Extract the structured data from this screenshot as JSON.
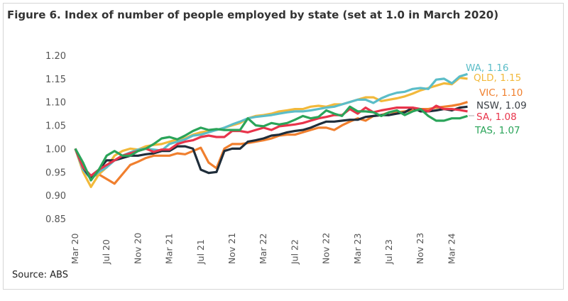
{
  "chart_data": {
    "type": "line",
    "title": "Figure 6. Index of number of people employed by state (set at 1.0 in March 2020)",
    "source": "Source: ABS",
    "xlabel": "",
    "ylabel": "",
    "ylim": [
      0.85,
      1.2
    ],
    "yticks": [
      "1.20",
      "1.15",
      "1.10",
      "1.05",
      "1.00",
      "0.95",
      "0.90",
      "0.85"
    ],
    "xticks": [
      "Mar 20",
      "Jul 20",
      "Nov 20",
      "Mar 21",
      "Jul 21",
      "Nov 21",
      "Mar 22",
      "Jul 22",
      "Nov 22",
      "Mar 23",
      "Jul 23",
      "Nov 23",
      "Mar 24"
    ],
    "x_range": [
      "Mar 2020",
      "May 2024"
    ],
    "frequency": "monthly",
    "grid": false,
    "legend": "end-of-line labels (right)",
    "series": [
      {
        "name": "WA",
        "label": "WA, 1.16",
        "color": "#5bbdc8",
        "values": [
          1.0,
          0.955,
          0.935,
          0.95,
          0.96,
          0.975,
          0.985,
          0.992,
          0.998,
          1.0,
          0.998,
          0.996,
          1.01,
          1.015,
          1.02,
          1.028,
          1.03,
          1.035,
          1.04,
          1.045,
          1.052,
          1.058,
          1.065,
          1.068,
          1.07,
          1.072,
          1.075,
          1.078,
          1.08,
          1.08,
          1.082,
          1.085,
          1.088,
          1.09,
          1.095,
          1.1,
          1.105,
          1.105,
          1.098,
          1.108,
          1.115,
          1.12,
          1.122,
          1.128,
          1.13,
          1.128,
          1.148,
          1.15,
          1.14,
          1.155,
          1.16
        ]
      },
      {
        "name": "QLD",
        "label": "QLD, 1.15",
        "color": "#f2b93b",
        "values": [
          1.0,
          0.95,
          0.918,
          0.945,
          0.96,
          0.985,
          0.995,
          1.0,
          0.998,
          1.005,
          1.008,
          1.01,
          1.015,
          1.02,
          1.022,
          1.03,
          1.035,
          1.038,
          1.04,
          1.045,
          1.05,
          1.055,
          1.065,
          1.07,
          1.072,
          1.075,
          1.08,
          1.082,
          1.085,
          1.085,
          1.09,
          1.092,
          1.09,
          1.095,
          1.095,
          1.1,
          1.105,
          1.11,
          1.11,
          1.102,
          1.105,
          1.108,
          1.112,
          1.118,
          1.125,
          1.13,
          1.135,
          1.14,
          1.138,
          1.152,
          1.15
        ]
      },
      {
        "name": "VIC",
        "label": "VIC, 1.10",
        "color": "#f07f2e",
        "values": [
          1.0,
          0.96,
          0.94,
          0.945,
          0.935,
          0.925,
          0.945,
          0.965,
          0.972,
          0.98,
          0.985,
          0.985,
          0.985,
          0.99,
          0.988,
          0.995,
          1.002,
          0.97,
          0.958,
          1.0,
          1.01,
          1.01,
          1.012,
          1.015,
          1.018,
          1.022,
          1.028,
          1.03,
          1.03,
          1.035,
          1.04,
          1.045,
          1.045,
          1.04,
          1.05,
          1.058,
          1.065,
          1.06,
          1.07,
          1.072,
          1.078,
          1.078,
          1.08,
          1.082,
          1.085,
          1.085,
          1.088,
          1.09,
          1.092,
          1.095,
          1.1
        ]
      },
      {
        "name": "NSW",
        "label": "NSW, 1.09",
        "color": "#1f2d3a",
        "label_color": "#3a3f45",
        "values": [
          1.0,
          0.96,
          0.935,
          0.955,
          0.975,
          0.975,
          0.98,
          0.985,
          0.985,
          0.988,
          0.99,
          0.995,
          0.995,
          1.005,
          1.005,
          1.0,
          0.955,
          0.948,
          0.95,
          0.995,
          1.0,
          1.0,
          1.015,
          1.018,
          1.022,
          1.028,
          1.03,
          1.035,
          1.038,
          1.04,
          1.045,
          1.052,
          1.058,
          1.058,
          1.06,
          1.062,
          1.062,
          1.068,
          1.07,
          1.072,
          1.072,
          1.075,
          1.078,
          1.088,
          1.08,
          1.08,
          1.082,
          1.085,
          1.082,
          1.088,
          1.09
        ]
      },
      {
        "name": "SA",
        "label": "SA, 1.08",
        "color": "#e8344b",
        "values": [
          1.0,
          0.96,
          0.942,
          0.955,
          0.965,
          0.975,
          0.985,
          0.99,
          0.995,
          1.0,
          0.993,
          0.998,
          0.998,
          1.01,
          1.015,
          1.018,
          1.025,
          1.028,
          1.025,
          1.025,
          1.038,
          1.038,
          1.035,
          1.04,
          1.045,
          1.04,
          1.048,
          1.05,
          1.052,
          1.055,
          1.06,
          1.065,
          1.068,
          1.072,
          1.072,
          1.085,
          1.075,
          1.088,
          1.078,
          1.082,
          1.085,
          1.088,
          1.088,
          1.088,
          1.085,
          1.08,
          1.092,
          1.085,
          1.085,
          1.083,
          1.08
        ]
      },
      {
        "name": "TAS",
        "label": "TAS, 1.07",
        "color": "#2aa459",
        "values": [
          1.0,
          0.97,
          0.932,
          0.955,
          0.985,
          0.995,
          0.985,
          0.985,
          0.995,
          1.0,
          1.01,
          1.022,
          1.025,
          1.02,
          1.028,
          1.038,
          1.045,
          1.04,
          1.042,
          1.04,
          1.04,
          1.04,
          1.065,
          1.05,
          1.048,
          1.055,
          1.052,
          1.055,
          1.062,
          1.07,
          1.065,
          1.068,
          1.082,
          1.075,
          1.07,
          1.09,
          1.08,
          1.08,
          1.078,
          1.07,
          1.078,
          1.082,
          1.072,
          1.08,
          1.085,
          1.07,
          1.06,
          1.06,
          1.065,
          1.065,
          1.07
        ]
      }
    ]
  }
}
